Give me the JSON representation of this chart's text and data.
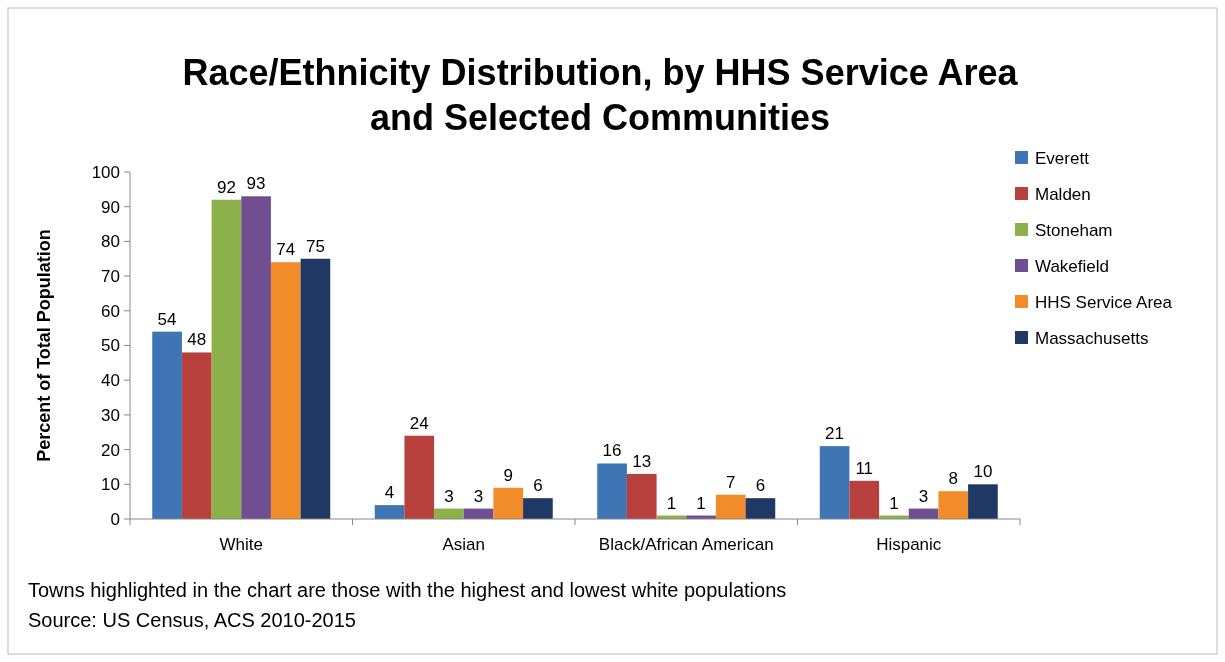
{
  "chart_data": {
    "type": "bar",
    "title": "Race/Ethnicity Distribution, by HHS Service Area and Selected Communities",
    "ylabel": "Percent of Total Population",
    "categories": [
      "White",
      "Asian",
      "Black/African American",
      "Hispanic"
    ],
    "series": [
      {
        "name": "Everett",
        "color": "#3f74b5",
        "values": [
          54,
          4,
          16,
          21
        ]
      },
      {
        "name": "Malden",
        "color": "#b9413d",
        "values": [
          48,
          24,
          13,
          11
        ]
      },
      {
        "name": "Stoneham",
        "color": "#8cb14a",
        "values": [
          92,
          3,
          1,
          1
        ]
      },
      {
        "name": "Wakefield",
        "color": "#6f4f92",
        "values": [
          93,
          3,
          1,
          3
        ]
      },
      {
        "name": "HHS Service Area",
        "color": "#f28c28",
        "values": [
          74,
          9,
          7,
          8
        ]
      },
      {
        "name": "Massachusetts",
        "color": "#1f3864",
        "values": [
          75,
          6,
          6,
          10
        ]
      }
    ],
    "ylim": [
      0,
      100
    ],
    "yticks": [
      0,
      10,
      20,
      30,
      40,
      50,
      60,
      70,
      80,
      90,
      100
    ],
    "data_labels": true,
    "legend": "right",
    "grid": false,
    "annotations": [
      "Towns highlighted in the chart are those with the highest and lowest white populations",
      "Source:  US Census, ACS  2010-2015"
    ]
  }
}
